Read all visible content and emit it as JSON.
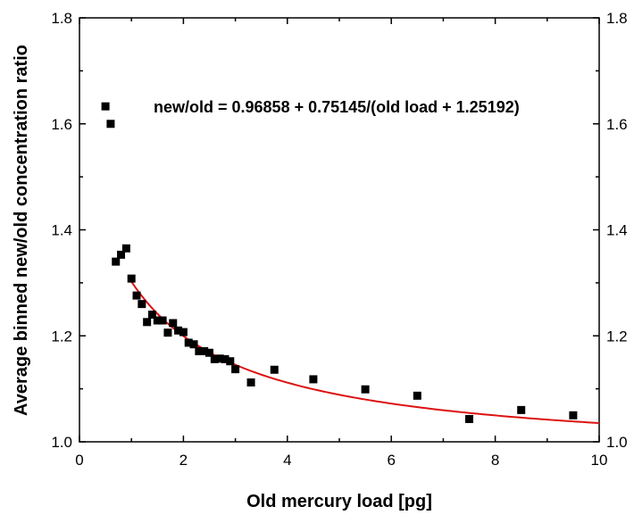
{
  "chart_data": {
    "type": "scatter",
    "xlabel": "Old mercury load [pg]",
    "ylabel": "Average binned new/old concentration ratio",
    "xlim": [
      0,
      10
    ],
    "ylim": [
      1.0,
      1.8
    ],
    "x_ticks": [
      0,
      2,
      4,
      6,
      8,
      10
    ],
    "y_ticks": [
      1.0,
      1.2,
      1.4,
      1.6,
      1.8
    ],
    "x_tick_labels": [
      "0",
      "2",
      "4",
      "6",
      "8",
      "10"
    ],
    "y_tick_labels": [
      "1.0",
      "1.2",
      "1.4",
      "1.6",
      "1.8"
    ],
    "right_y_tick_labels": [
      "1.0",
      "1.2",
      "1.4",
      "1.6",
      "1.8"
    ],
    "grid": false,
    "annotation": "new/old = 0.96858 + 0.75145/(old load + 1.25192)",
    "marker_color": "#000000",
    "fit_color": "#dd1111",
    "points": [
      {
        "x": 0.5,
        "y": 1.633
      },
      {
        "x": 0.6,
        "y": 1.6
      },
      {
        "x": 0.7,
        "y": 1.34
      },
      {
        "x": 0.8,
        "y": 1.353
      },
      {
        "x": 0.9,
        "y": 1.365
      },
      {
        "x": 1.0,
        "y": 1.308
      },
      {
        "x": 1.1,
        "y": 1.276
      },
      {
        "x": 1.2,
        "y": 1.26
      },
      {
        "x": 1.3,
        "y": 1.226
      },
      {
        "x": 1.4,
        "y": 1.24
      },
      {
        "x": 1.5,
        "y": 1.229
      },
      {
        "x": 1.6,
        "y": 1.229
      },
      {
        "x": 1.7,
        "y": 1.206
      },
      {
        "x": 1.8,
        "y": 1.224
      },
      {
        "x": 1.9,
        "y": 1.21
      },
      {
        "x": 2.0,
        "y": 1.207
      },
      {
        "x": 2.1,
        "y": 1.187
      },
      {
        "x": 2.2,
        "y": 1.184
      },
      {
        "x": 2.3,
        "y": 1.171
      },
      {
        "x": 2.4,
        "y": 1.171
      },
      {
        "x": 2.5,
        "y": 1.168
      },
      {
        "x": 2.6,
        "y": 1.156
      },
      {
        "x": 2.7,
        "y": 1.157
      },
      {
        "x": 2.8,
        "y": 1.156
      },
      {
        "x": 2.9,
        "y": 1.152
      },
      {
        "x": 3.0,
        "y": 1.137
      },
      {
        "x": 3.3,
        "y": 1.112
      },
      {
        "x": 3.75,
        "y": 1.136
      },
      {
        "x": 4.5,
        "y": 1.118
      },
      {
        "x": 5.5,
        "y": 1.099
      },
      {
        "x": 6.5,
        "y": 1.087
      },
      {
        "x": 7.5,
        "y": 1.043
      },
      {
        "x": 8.5,
        "y": 1.06
      },
      {
        "x": 9.5,
        "y": 1.05
      }
    ],
    "fit": {
      "type": "hyperbolic",
      "a": 0.96858,
      "b": 0.75145,
      "c": 1.25192,
      "x_range": [
        1.0,
        10.0
      ]
    }
  }
}
